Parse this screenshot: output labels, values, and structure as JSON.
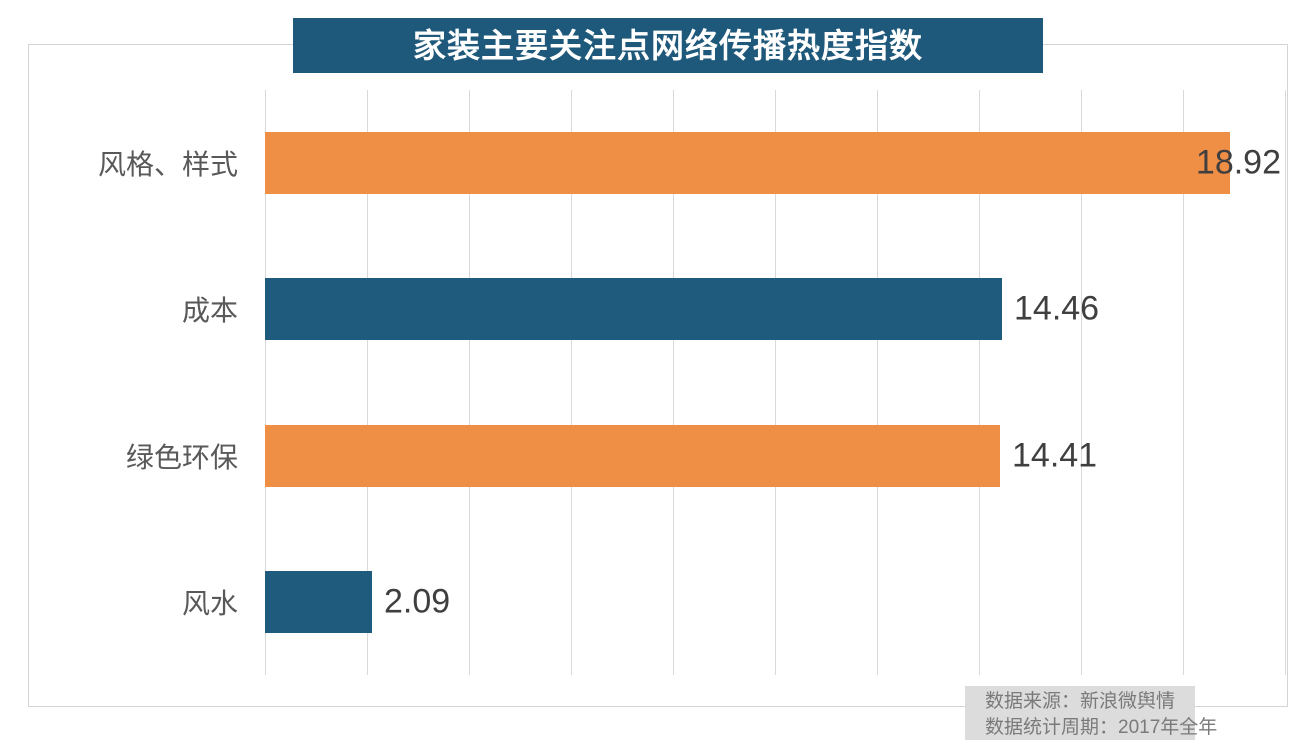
{
  "title": "家装主要关注点网络传播热度指数",
  "source": {
    "line1": "数据来源：新浪微舆情",
    "line2": "数据统计周期：2017年全年"
  },
  "colors": {
    "title_bg": "#1e587a",
    "bar_orange": "#ef8e45",
    "bar_teal": "#1f5b7c",
    "grid_line": "#d9d9d9",
    "frame_border": "#d4d4d4",
    "category_text": "#595959",
    "value_text": "#3f3f3f",
    "source_bg": "#dcdcdc",
    "source_text": "#7a7a7a"
  },
  "chart_data": {
    "type": "bar",
    "orientation": "horizontal",
    "title": "家装主要关注点网络传播热度指数",
    "categories": [
      "风格、样式",
      "成本",
      "绿色环保",
      "风水"
    ],
    "values": [
      18.92,
      14.46,
      14.41,
      2.09
    ],
    "value_labels": [
      "18.92",
      "14.46",
      "14.41",
      "2.09"
    ],
    "bar_colors": [
      "#ef8e45",
      "#1f5b7c",
      "#ef8e45",
      "#1f5b7c"
    ],
    "xlim": [
      0,
      20
    ],
    "grid_interval": 2,
    "grid": true,
    "legend": "none",
    "xlabel": "",
    "ylabel": ""
  }
}
